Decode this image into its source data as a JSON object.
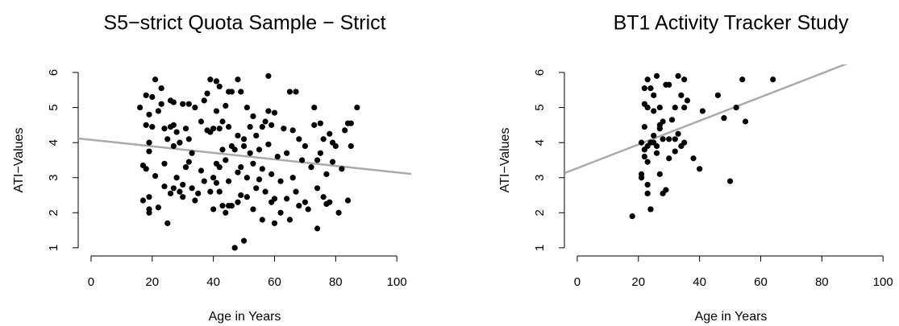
{
  "chart_data": [
    {
      "type": "scatter",
      "title": "S5−strict Quota Sample − Strict",
      "x_label": "Age in Years",
      "y_label": "ATI−Values",
      "color": "#000000",
      "x": [
        16,
        17,
        17,
        18,
        18,
        18,
        19,
        19,
        19,
        19,
        19,
        19,
        20,
        20,
        21,
        21,
        22,
        22,
        23,
        23,
        24,
        24,
        24,
        25,
        25,
        26,
        26,
        26,
        27,
        27,
        27,
        27,
        28,
        28,
        29,
        29,
        30,
        30,
        30,
        31,
        31,
        32,
        32,
        32,
        33,
        33,
        34,
        34,
        35,
        36,
        36,
        37,
        37,
        38,
        38,
        39,
        39,
        39,
        40,
        40,
        40,
        41,
        41,
        41,
        41,
        42,
        42,
        42,
        42,
        43,
        43,
        43,
        44,
        44,
        44,
        45,
        45,
        45,
        45,
        46,
        46,
        46,
        47,
        47,
        48,
        48,
        48,
        48,
        49,
        49,
        49,
        50,
        50,
        50,
        51,
        51,
        51,
        52,
        52,
        53,
        53,
        53,
        54,
        54,
        55,
        55,
        56,
        56,
        56,
        57,
        57,
        58,
        58,
        58,
        59,
        59,
        59,
        60,
        60,
        60,
        61,
        62,
        62,
        63,
        64,
        64,
        65,
        65,
        66,
        66,
        67,
        67,
        68,
        68,
        69,
        70,
        70,
        71,
        72,
        73,
        73,
        74,
        74,
        74,
        75,
        75,
        76,
        76,
        77,
        77,
        78,
        78,
        79,
        79,
        80,
        81,
        82,
        83,
        84,
        84,
        85,
        85,
        87
      ],
      "values": [
        5.0,
        3.35,
        2.35,
        4.5,
        3.25,
        5.35,
        4.8,
        2.1,
        2.0,
        2.45,
        4.0,
        3.75,
        5.3,
        4.45,
        5.8,
        3.05,
        2.15,
        4.9,
        5.55,
        5.1,
        4.4,
        3.4,
        2.75,
        1.7,
        4.1,
        5.2,
        4.45,
        2.55,
        5.15,
        4.5,
        3.9,
        2.7,
        4.3,
        3.0,
        2.6,
        4.0,
        5.1,
        2.8,
        2.45,
        4.4,
        3.3,
        5.1,
        4.1,
        3.45,
        3.7,
        2.7,
        2.35,
        5.0,
        2.55,
        4.6,
        3.2,
        2.9,
        5.2,
        5.4,
        4.35,
        5.8,
        4.3,
        2.6,
        4.4,
        3.0,
        2.1,
        5.75,
        4.9,
        3.4,
        2.85,
        5.6,
        4.4,
        3.3,
        2.6,
        4.6,
        3.8,
        2.2,
        5.05,
        3.5,
        2.0,
        5.45,
        4.45,
        2.9,
        2.2,
        3.9,
        5.45,
        2.2,
        1.0,
        3.8,
        5.8,
        4.2,
        3.15,
        2.3,
        5.45,
        3.3,
        2.5,
        1.2,
        4.1,
        3.9,
        5.0,
        3.0,
        2.45,
        4.45,
        3.7,
        4.75,
        3.4,
        2.1,
        4.2,
        2.7,
        3.8,
        2.95,
        1.8,
        4.45,
        3.25,
        4.6,
        2.6,
        5.9,
        4.9,
        3.95,
        4.5,
        3.1,
        2.3,
        1.7,
        4.85,
        2.4,
        3.6,
        2.0,
        2.9,
        4.4,
        2.4,
        3.7,
        5.45,
        1.8,
        4.35,
        3.0,
        5.45,
        2.6,
        4.1,
        2.2,
        3.5,
        3.9,
        2.3,
        2.1,
        3.3,
        5.0,
        4.5,
        1.55,
        3.5,
        2.7,
        3.7,
        4.55,
        4.1,
        2.45,
        3.1,
        2.25,
        2.3,
        4.25,
        3.45,
        4.0,
        3.9,
        2.0,
        3.25,
        4.35,
        2.35,
        4.55,
        3.9,
        4.55,
        5.0
      ],
      "fit_line": {
        "intercept": 4.08,
        "slope": -0.0093,
        "color": "#aaaaaa"
      },
      "xlim": [
        -4.2,
        104.7
      ],
      "ylim": [
        0.79,
        6.23
      ],
      "xticks": [
        0,
        20,
        40,
        60,
        80,
        100
      ],
      "yticks": [
        1,
        2,
        3,
        4,
        5,
        6
      ]
    },
    {
      "type": "scatter",
      "title": "BT1 Activity Tracker Study",
      "x_label": "Age in Years",
      "y_label": "ATI−Values",
      "color": "#000000",
      "x": [
        18,
        21,
        21,
        21,
        22,
        22,
        22,
        22,
        22,
        23,
        23,
        23,
        23,
        23,
        23,
        24,
        24,
        24,
        24,
        25,
        25,
        25,
        25,
        26,
        26,
        26,
        27,
        27,
        27,
        27,
        28,
        28,
        28,
        29,
        29,
        30,
        30,
        30,
        31,
        32,
        32,
        32,
        33,
        33,
        34,
        34,
        35,
        35,
        36,
        38,
        40,
        41,
        46,
        48,
        50,
        52,
        54,
        55,
        64,
        35
      ],
      "values": [
        1.9,
        3.1,
        3.0,
        4.0,
        3.6,
        3.8,
        4.45,
        5.1,
        5.55,
        5.8,
        2.55,
        2.8,
        3.45,
        3.9,
        5.0,
        2.1,
        2.1,
        4.0,
        5.55,
        4.0,
        4.2,
        4.9,
        5.35,
        5.9,
        3.9,
        3.7,
        3.1,
        4.4,
        4.5,
        5.0,
        4.6,
        2.55,
        4.1,
        2.65,
        5.65,
        5.65,
        4.1,
        3.55,
        4.65,
        4.1,
        3.75,
        5.0,
        5.9,
        4.25,
        5.35,
        3.9,
        4.0,
        5.8,
        5.2,
        3.55,
        3.25,
        4.9,
        5.35,
        4.7,
        2.9,
        5.0,
        5.8,
        4.6,
        5.8,
        5.0
      ],
      "fit_line": {
        "intercept": 3.27,
        "slope": 0.0338,
        "color": "#aaaaaa"
      },
      "xlim": [
        -4.2,
        104.7
      ],
      "ylim": [
        0.79,
        6.23
      ],
      "xticks": [
        0,
        20,
        40,
        60,
        80,
        100
      ],
      "yticks": [
        1,
        2,
        3,
        4,
        5,
        6
      ]
    }
  ]
}
